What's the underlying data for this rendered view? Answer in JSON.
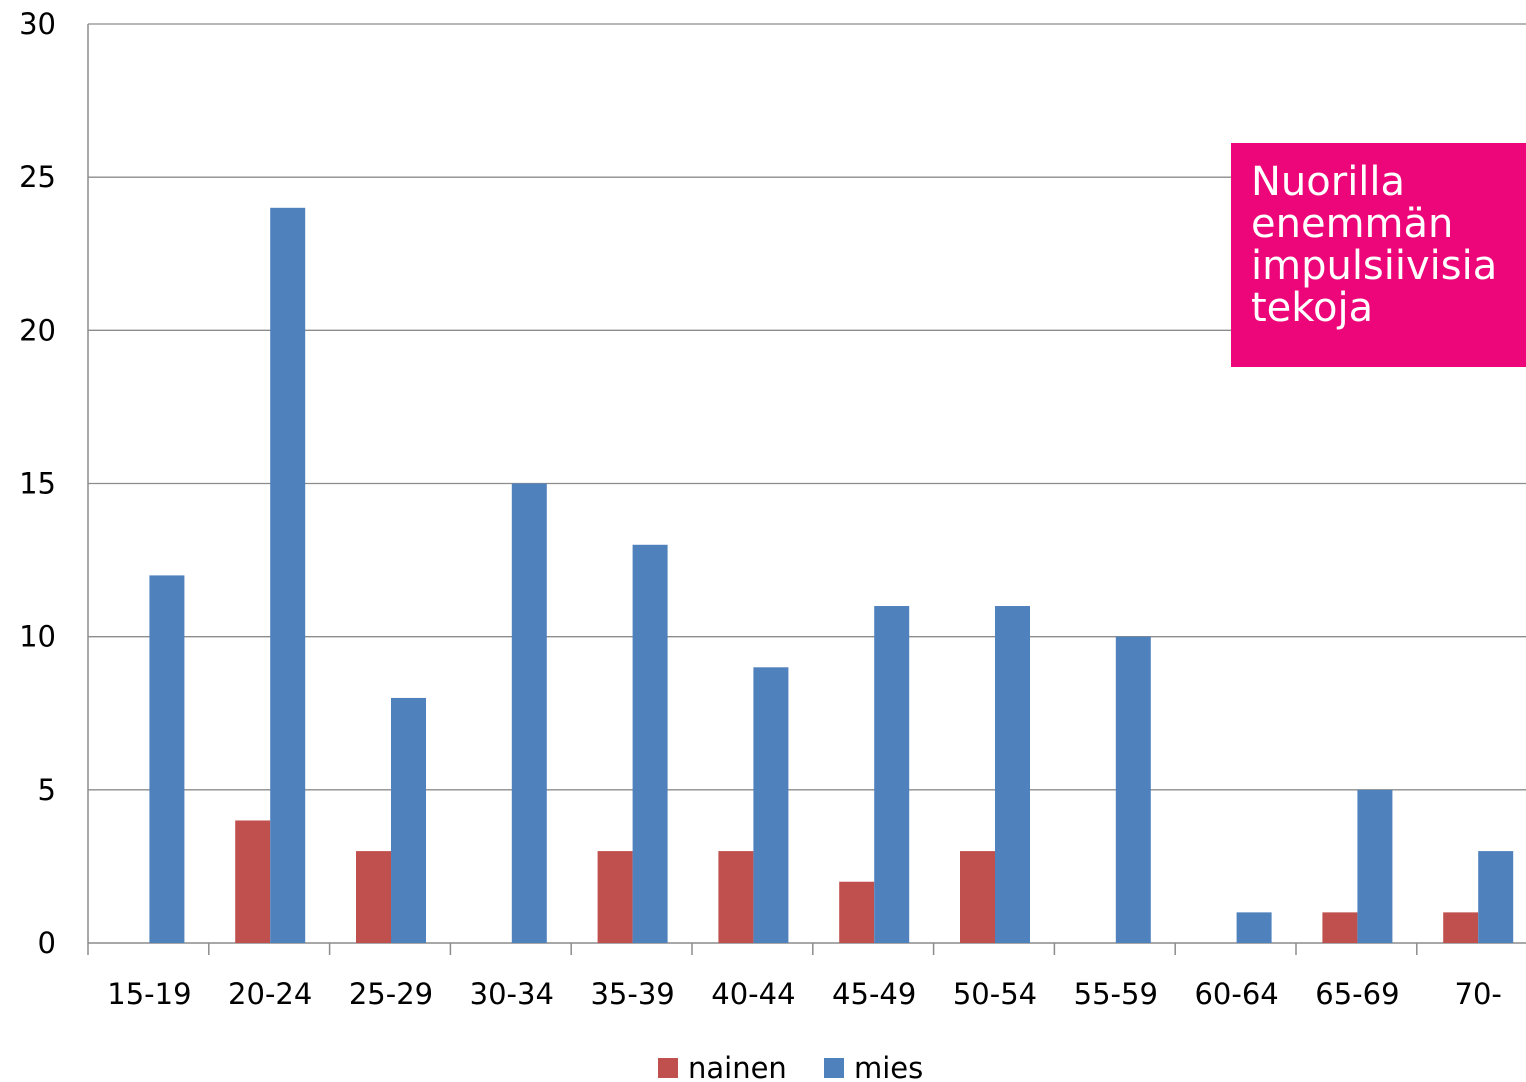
{
  "chart_data": {
    "type": "bar",
    "categories": [
      "15-19",
      "20-24",
      "25-29",
      "30-34",
      "35-39",
      "40-44",
      "45-49",
      "50-54",
      "55-59",
      "60-64",
      "65-69",
      "70-"
    ],
    "series": [
      {
        "name": "nainen",
        "color": "#c0504d",
        "values": [
          0,
          4,
          3,
          0,
          3,
          3,
          2,
          3,
          0,
          0,
          1,
          1
        ]
      },
      {
        "name": "mies",
        "color": "#4f81bd",
        "values": [
          12,
          24,
          8,
          15,
          13,
          9,
          11,
          11,
          10,
          1,
          5,
          3
        ]
      }
    ],
    "ylim": [
      0,
      30
    ],
    "yticks": [
      0,
      5,
      10,
      15,
      20,
      25,
      30
    ],
    "grid": true,
    "legend_position": "bottom",
    "title": "",
    "xlabel": "",
    "ylabel": ""
  },
  "callout": {
    "text": "Nuorilla enemmän\nimpulsiivisia\ntekoja",
    "color": "#ec0679"
  }
}
